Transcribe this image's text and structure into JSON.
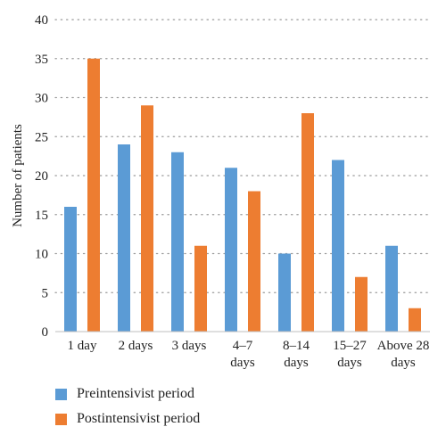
{
  "chart_data": {
    "type": "bar",
    "categories": [
      [
        "1 day"
      ],
      [
        "2 days"
      ],
      [
        "3 days"
      ],
      [
        "4–7",
        "days"
      ],
      [
        "8–14",
        "days"
      ],
      [
        "15–27",
        "days"
      ],
      [
        "Above 28",
        "days"
      ]
    ],
    "series": [
      {
        "name": "Preintensivist period",
        "color": "#5B9BD5",
        "values": [
          16,
          24,
          23,
          21,
          10,
          22,
          11
        ]
      },
      {
        "name": "Postintensivist period",
        "color": "#ED7D31",
        "values": [
          35,
          29,
          11,
          18,
          28,
          7,
          3
        ]
      }
    ],
    "ylabel": "Number of patients",
    "xlabel": "",
    "ylim": [
      0,
      40
    ],
    "yticks": [
      0,
      5,
      10,
      15,
      20,
      25,
      30,
      35,
      40
    ],
    "grid": true,
    "legend_position": "bottom-left"
  }
}
